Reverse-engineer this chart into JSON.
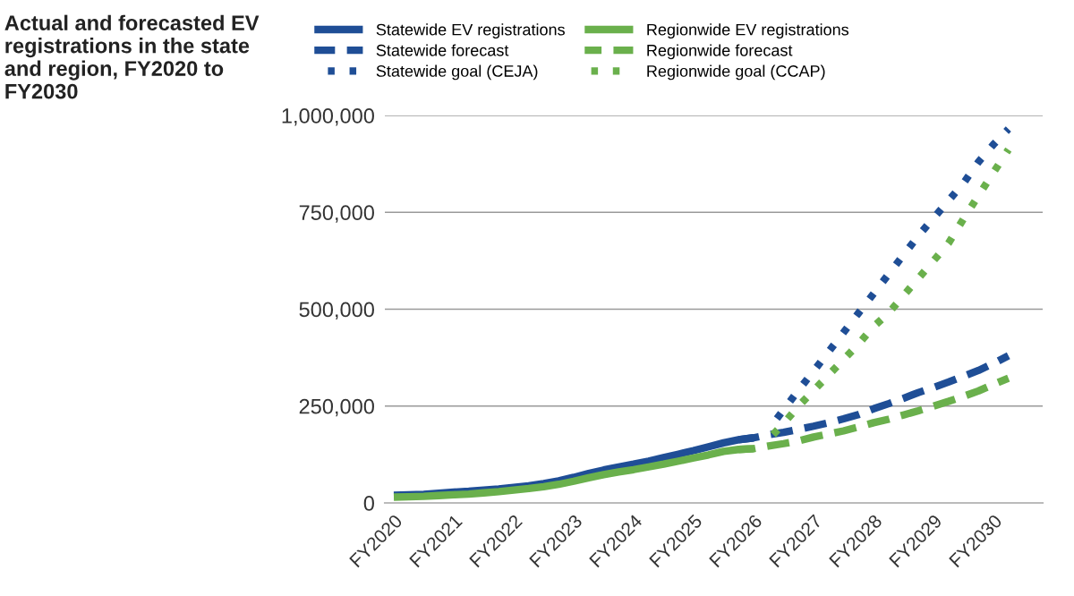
{
  "chart_data": {
    "type": "line",
    "title": "Actual and forecasted EV registrations in the state and region, FY2020 to FY2030",
    "categories": [
      "FY2020",
      null,
      null,
      null,
      "FY2021",
      null,
      null,
      null,
      "FY2022",
      null,
      null,
      null,
      "FY2023",
      null,
      null,
      null,
      "FY2024",
      null,
      null,
      null,
      "FY2025",
      null,
      null,
      null,
      "FY2026",
      null,
      null,
      null,
      "FY2027",
      null,
      null,
      null,
      "FY2028",
      null,
      null,
      null,
      "FY2029",
      null,
      null,
      null,
      "FY2030",
      null
    ],
    "ylim": [
      0,
      1000000
    ],
    "yticks": [
      {
        "value": 0,
        "label": "0"
      },
      {
        "value": 250000,
        "label": "250,000"
      },
      {
        "value": 500000,
        "label": "500,000"
      },
      {
        "value": 750000,
        "label": "750,000"
      },
      {
        "value": 1000000,
        "label": "1,000,000"
      }
    ],
    "grid": "y",
    "legend": "top",
    "marker": "none",
    "series": [
      {
        "name": "Statewide EV registrations",
        "color": "#1f4e96",
        "line_style": "solid",
        "values": [
          20000,
          21000,
          22000,
          25000,
          28000,
          30000,
          33000,
          36000,
          40000,
          44000,
          50000,
          57000,
          66000,
          76000,
          85000,
          93000,
          100000,
          108000,
          117000,
          126000,
          135000,
          145000,
          155000,
          163000,
          168000,
          null,
          null,
          null,
          null,
          null,
          null,
          null,
          null,
          null,
          null,
          null,
          null,
          null,
          null,
          null,
          null,
          null
        ]
      },
      {
        "name": "Regionwide EV registrations",
        "color": "#6ab04c",
        "line_style": "solid",
        "values": [
          15000,
          16000,
          17000,
          19000,
          21000,
          23000,
          26000,
          29000,
          33000,
          37000,
          42000,
          48000,
          56000,
          65000,
          73000,
          80000,
          86000,
          93000,
          100000,
          108000,
          116000,
          124000,
          133000,
          138000,
          140000,
          null,
          null,
          null,
          null,
          null,
          null,
          null,
          null,
          null,
          null,
          null,
          null,
          null,
          null,
          null,
          null,
          null
        ]
      },
      {
        "name": "Statewide forecast",
        "color": "#1f4e96",
        "line_style": "dashed",
        "values": [
          null,
          null,
          null,
          null,
          null,
          null,
          null,
          null,
          null,
          null,
          null,
          null,
          null,
          null,
          null,
          null,
          null,
          null,
          null,
          null,
          null,
          null,
          null,
          163000,
          168000,
          176000,
          182000,
          190000,
          198000,
          207000,
          217000,
          228000,
          243000,
          256000,
          270000,
          285000,
          298000,
          312000,
          327000,
          342000,
          360000,
          380000
        ]
      },
      {
        "name": "Regionwide forecast",
        "color": "#6ab04c",
        "line_style": "dashed",
        "values": [
          null,
          null,
          null,
          null,
          null,
          null,
          null,
          null,
          null,
          null,
          null,
          null,
          null,
          null,
          null,
          null,
          null,
          null,
          null,
          null,
          null,
          null,
          null,
          138000,
          140000,
          147000,
          153000,
          160000,
          170000,
          178000,
          186000,
          196000,
          207000,
          216000,
          227000,
          238000,
          250000,
          262000,
          275000,
          289000,
          306000,
          322000
        ]
      },
      {
        "name": "Statewide goal (CEJA)",
        "color": "#1f4e96",
        "line_style": "dotted",
        "values": [
          null,
          null,
          null,
          null,
          null,
          null,
          null,
          null,
          null,
          null,
          null,
          null,
          null,
          null,
          null,
          null,
          null,
          null,
          null,
          null,
          null,
          null,
          null,
          null,
          null,
          190000,
          240000,
          291000,
          340000,
          390000,
          440000,
          490000,
          540000,
          590000,
          640000,
          690000,
          735000,
          780000,
          825000,
          880000,
          925000,
          965000
        ]
      },
      {
        "name": "Regionwide goal (CCAP)",
        "color": "#6ab04c",
        "line_style": "dotted",
        "values": [
          null,
          null,
          null,
          null,
          null,
          null,
          null,
          null,
          null,
          null,
          null,
          null,
          null,
          null,
          null,
          null,
          null,
          null,
          null,
          null,
          null,
          null,
          null,
          null,
          null,
          164000,
          205000,
          250000,
          290000,
          330000,
          370000,
          410000,
          455000,
          490000,
          535000,
          580000,
          625000,
          670000,
          733000,
          793000,
          853000,
          912000
        ]
      }
    ]
  }
}
